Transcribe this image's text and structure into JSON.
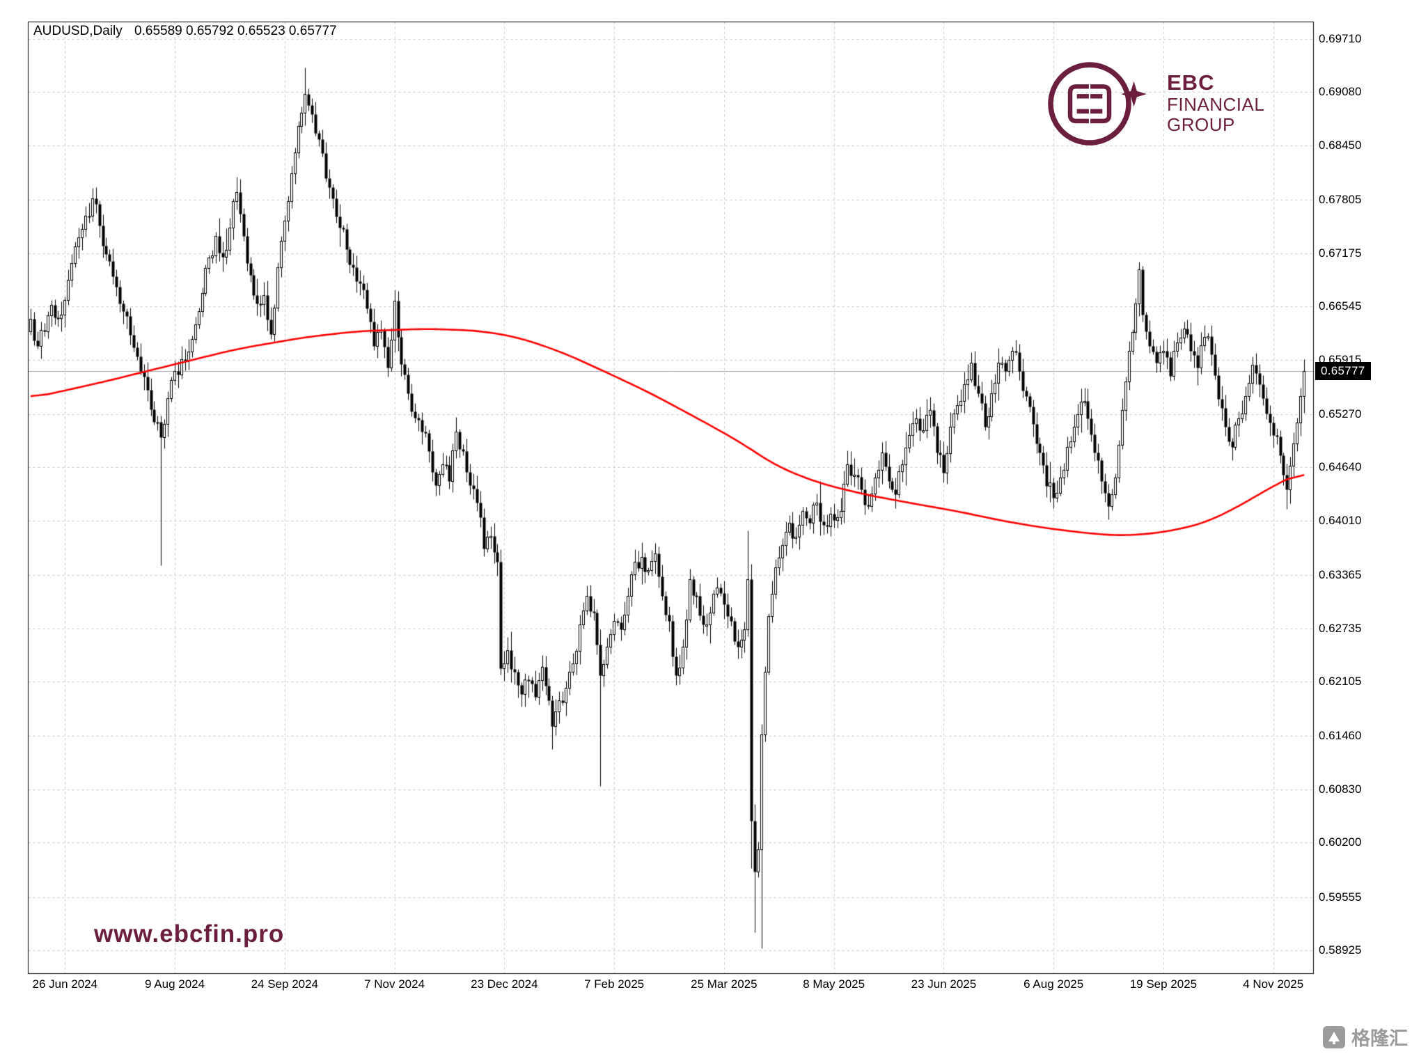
{
  "header": {
    "symbol_line": "AUDUSD,Daily",
    "ohlc_values": "0.65589 0.65792 0.65523 0.65777",
    "open": "0.65589",
    "high": "0.65792",
    "low": "0.65523",
    "close": "0.65777"
  },
  "branding": {
    "logo_title": "EBC",
    "logo_line1": "FINANCIAL",
    "logo_line2": "GROUP",
    "brand_color": "#6b1e3d",
    "watermark": "www.ebcfin.pro"
  },
  "footer_mark": {
    "text": "格隆汇"
  },
  "chart_data": {
    "type": "candlestick",
    "title": "AUDUSD,Daily",
    "symbol": "AUDUSD",
    "timeframe": "Daily",
    "background": "#ffffff",
    "grid": "dashed",
    "grid_color": "#c6c6c6",
    "candle_color": "#000000",
    "ma_color": "#ff0000",
    "current_price": 0.65777,
    "current_price_label": "0.65777",
    "ohlc": {
      "open": 0.65589,
      "high": 0.65792,
      "low": 0.65523,
      "close": 0.65777
    },
    "y_tick_labels": [
      "0.69710",
      "0.69080",
      "0.68450",
      "0.67805",
      "0.67175",
      "0.66545",
      "0.65915",
      "0.65270",
      "0.64640",
      "0.64010",
      "0.63365",
      "0.62735",
      "0.62105",
      "0.61460",
      "0.60830",
      "0.60200",
      "0.59555",
      "0.58925"
    ],
    "x_tick_labels": [
      "26 Jun 2024",
      "9 Aug 2024",
      "24 Sep 2024",
      "7 Nov 2024",
      "23 Dec 2024",
      "7 Feb 2025",
      "25 Mar 2025",
      "8 May 2025",
      "23 Jun 2025",
      "6 Aug 2025",
      "19 Sep 2025",
      "4 Nov 2025"
    ],
    "x_tick_bars": [
      10,
      42,
      74,
      106,
      138,
      170,
      202,
      234,
      266,
      298,
      330,
      362
    ],
    "num_bars": 372,
    "ylim": [
      0.58925,
      0.6971
    ],
    "close_anchors": [
      [
        0,
        0.664
      ],
      [
        2,
        0.6608
      ],
      [
        4,
        0.6625
      ],
      [
        6,
        0.6656
      ],
      [
        8,
        0.6641
      ],
      [
        10,
        0.6662
      ],
      [
        12,
        0.6706
      ],
      [
        14,
        0.6736
      ],
      [
        16,
        0.6762
      ],
      [
        18,
        0.6782
      ],
      [
        20,
        0.675
      ],
      [
        22,
        0.6716
      ],
      [
        24,
        0.669
      ],
      [
        26,
        0.6658
      ],
      [
        28,
        0.6643
      ],
      [
        30,
        0.6606
      ],
      [
        32,
        0.6578
      ],
      [
        34,
        0.6556
      ],
      [
        36,
        0.6518
      ],
      [
        38,
        0.65
      ],
      [
        40,
        0.6546
      ],
      [
        42,
        0.6578
      ],
      [
        44,
        0.6592
      ],
      [
        46,
        0.6601
      ],
      [
        48,
        0.6633
      ],
      [
        50,
        0.667
      ],
      [
        52,
        0.6712
      ],
      [
        54,
        0.6738
      ],
      [
        56,
        0.6713
      ],
      [
        58,
        0.6748
      ],
      [
        60,
        0.679
      ],
      [
        62,
        0.6738
      ],
      [
        64,
        0.6692
      ],
      [
        66,
        0.6658
      ],
      [
        68,
        0.6668
      ],
      [
        70,
        0.6622
      ],
      [
        72,
        0.6701
      ],
      [
        74,
        0.6756
      ],
      [
        76,
        0.6812
      ],
      [
        78,
        0.6868
      ],
      [
        80,
        0.6906
      ],
      [
        82,
        0.6882
      ],
      [
        84,
        0.6852
      ],
      [
        86,
        0.6806
      ],
      [
        88,
        0.6782
      ],
      [
        90,
        0.6748
      ],
      [
        92,
        0.6722
      ],
      [
        94,
        0.6701
      ],
      [
        96,
        0.6682
      ],
      [
        98,
        0.6652
      ],
      [
        100,
        0.6608
      ],
      [
        102,
        0.6626
      ],
      [
        104,
        0.6582
      ],
      [
        106,
        0.6661
      ],
      [
        108,
        0.6586
      ],
      [
        110,
        0.6552
      ],
      [
        112,
        0.6523
      ],
      [
        114,
        0.6506
      ],
      [
        116,
        0.6483
      ],
      [
        118,
        0.6443
      ],
      [
        120,
        0.6468
      ],
      [
        122,
        0.6448
      ],
      [
        124,
        0.6506
      ],
      [
        126,
        0.6483
      ],
      [
        128,
        0.6443
      ],
      [
        130,
        0.6422
      ],
      [
        132,
        0.6368
      ],
      [
        134,
        0.6383
      ],
      [
        136,
        0.6352
      ],
      [
        137,
        0.6226
      ],
      [
        139,
        0.6248
      ],
      [
        141,
        0.6222
      ],
      [
        143,
        0.6196
      ],
      [
        145,
        0.6212
      ],
      [
        147,
        0.6192
      ],
      [
        149,
        0.6228
      ],
      [
        152,
        0.6158
      ],
      [
        154,
        0.6188
      ],
      [
        156,
        0.6203
      ],
      [
        158,
        0.6232
      ],
      [
        160,
        0.6278
      ],
      [
        162,
        0.6312
      ],
      [
        164,
        0.6292
      ],
      [
        166,
        0.6218
      ],
      [
        168,
        0.6252
      ],
      [
        170,
        0.6282
      ],
      [
        172,
        0.6272
      ],
      [
        174,
        0.6312
      ],
      [
        176,
        0.6352
      ],
      [
        178,
        0.6358
      ],
      [
        180,
        0.6342
      ],
      [
        182,
        0.6362
      ],
      [
        184,
        0.6312
      ],
      [
        186,
        0.6282
      ],
      [
        188,
        0.6218
      ],
      [
        190,
        0.6252
      ],
      [
        192,
        0.6332
      ],
      [
        194,
        0.6312
      ],
      [
        196,
        0.6278
      ],
      [
        198,
        0.6292
      ],
      [
        200,
        0.6322
      ],
      [
        202,
        0.6302
      ],
      [
        204,
        0.6282
      ],
      [
        206,
        0.6252
      ],
      [
        208,
        0.6272
      ],
      [
        209,
        0.6332
      ],
      [
        210,
        0.6046
      ],
      [
        211,
        0.5986
      ],
      [
        212,
        0.6012
      ],
      [
        213,
        0.6148
      ],
      [
        214,
        0.6222
      ],
      [
        215,
        0.6288
      ],
      [
        217,
        0.6346
      ],
      [
        219,
        0.6372
      ],
      [
        221,
        0.6398
      ],
      [
        223,
        0.6382
      ],
      [
        225,
        0.6412
      ],
      [
        227,
        0.6398
      ],
      [
        229,
        0.6422
      ],
      [
        231,
        0.6396
      ],
      [
        234,
        0.6402
      ],
      [
        236,
        0.6412
      ],
      [
        238,
        0.6468
      ],
      [
        240,
        0.6455
      ],
      [
        242,
        0.6438
      ],
      [
        244,
        0.6418
      ],
      [
        246,
        0.6452
      ],
      [
        248,
        0.6482
      ],
      [
        250,
        0.6448
      ],
      [
        252,
        0.6432
      ],
      [
        254,
        0.6468
      ],
      [
        256,
        0.6502
      ],
      [
        258,
        0.6522
      ],
      [
        260,
        0.6508
      ],
      [
        262,
        0.6532
      ],
      [
        264,
        0.6482
      ],
      [
        266,
        0.6458
      ],
      [
        268,
        0.6512
      ],
      [
        270,
        0.6538
      ],
      [
        272,
        0.6562
      ],
      [
        274,
        0.6588
      ],
      [
        276,
        0.6552
      ],
      [
        278,
        0.6512
      ],
      [
        280,
        0.6552
      ],
      [
        282,
        0.6588
      ],
      [
        284,
        0.6578
      ],
      [
        286,
        0.6602
      ],
      [
        288,
        0.6578
      ],
      [
        290,
        0.6548
      ],
      [
        292,
        0.6515
      ],
      [
        294,
        0.6482
      ],
      [
        296,
        0.6442
      ],
      [
        298,
        0.6428
      ],
      [
        300,
        0.6452
      ],
      [
        302,
        0.6488
      ],
      [
        304,
        0.6512
      ],
      [
        306,
        0.6542
      ],
      [
        308,
        0.6522
      ],
      [
        310,
        0.6482
      ],
      [
        312,
        0.6448
      ],
      [
        314,
        0.6418
      ],
      [
        316,
        0.6452
      ],
      [
        318,
        0.6532
      ],
      [
        320,
        0.6602
      ],
      [
        322,
        0.6658
      ],
      [
        323,
        0.6698
      ],
      [
        324,
        0.6645
      ],
      [
        326,
        0.6608
      ],
      [
        328,
        0.6588
      ],
      [
        330,
        0.6602
      ],
      [
        332,
        0.6572
      ],
      [
        334,
        0.6612
      ],
      [
        336,
        0.6628
      ],
      [
        338,
        0.6602
      ],
      [
        340,
        0.6582
      ],
      [
        342,
        0.6618
      ],
      [
        344,
        0.6598
      ],
      [
        346,
        0.6545
      ],
      [
        348,
        0.6512
      ],
      [
        350,
        0.6488
      ],
      [
        352,
        0.6522
      ],
      [
        354,
        0.6548
      ],
      [
        356,
        0.6585
      ],
      [
        358,
        0.6562
      ],
      [
        360,
        0.6528
      ],
      [
        362,
        0.6502
      ],
      [
        364,
        0.6478
      ],
      [
        366,
        0.6438
      ],
      [
        368,
        0.6492
      ],
      [
        370,
        0.6548
      ],
      [
        371,
        0.6578
      ]
    ],
    "wick_overrides": [
      [
        38,
        "low",
        0.6348
      ],
      [
        80,
        "high",
        0.6937
      ],
      [
        152,
        "low",
        0.6131
      ],
      [
        166,
        "low",
        0.6087
      ],
      [
        209,
        "high",
        0.6389
      ],
      [
        210,
        "low",
        0.599
      ],
      [
        211,
        "low",
        0.5914
      ],
      [
        213,
        "low",
        0.5895
      ],
      [
        323,
        "high",
        0.6707
      ],
      [
        366,
        "low",
        0.6415
      ]
    ],
    "ma_anchors": [
      [
        0,
        0.6546
      ],
      [
        20,
        0.6564
      ],
      [
        40,
        0.6584
      ],
      [
        60,
        0.6604
      ],
      [
        80,
        0.6618
      ],
      [
        95,
        0.6625
      ],
      [
        115,
        0.6628
      ],
      [
        130,
        0.6626
      ],
      [
        142,
        0.6618
      ],
      [
        155,
        0.66
      ],
      [
        168,
        0.6576
      ],
      [
        180,
        0.6553
      ],
      [
        192,
        0.6527
      ],
      [
        205,
        0.6498
      ],
      [
        218,
        0.6464
      ],
      [
        230,
        0.6445
      ],
      [
        243,
        0.6432
      ],
      [
        256,
        0.6422
      ],
      [
        270,
        0.6412
      ],
      [
        284,
        0.64
      ],
      [
        296,
        0.6392
      ],
      [
        308,
        0.6386
      ],
      [
        318,
        0.6383
      ],
      [
        330,
        0.6387
      ],
      [
        342,
        0.6398
      ],
      [
        352,
        0.6418
      ],
      [
        362,
        0.6442
      ],
      [
        371,
        0.646
      ]
    ]
  }
}
